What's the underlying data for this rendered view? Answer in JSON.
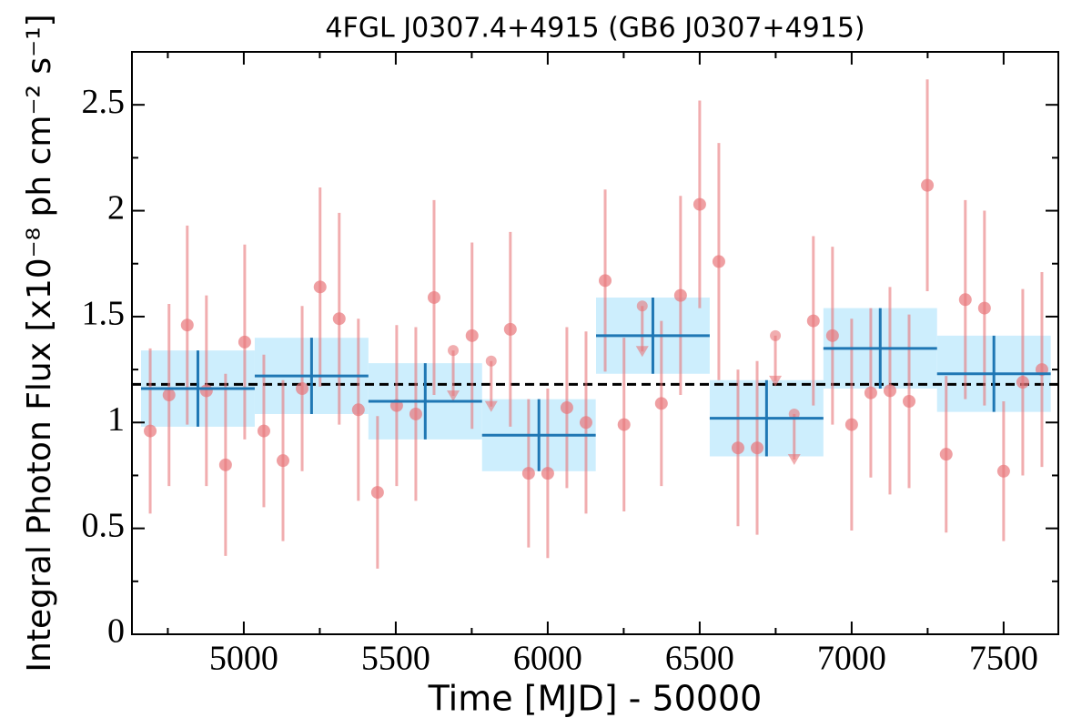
{
  "chart_data": {
    "type": "lightcurve",
    "title": "4FGL J0307.4+4915 (GB6 J0307+4915)",
    "x_label": "Time [MJD] - 50000",
    "y_label": "Integral Photon Flux [x10⁻⁸ ph cm⁻² s⁻¹]",
    "xlim": [
      4632,
      7680
    ],
    "ylim": [
      0,
      2.75
    ],
    "xticks": [
      5000,
      5500,
      6000,
      6500,
      7000,
      7500
    ],
    "minor_xticks": [
      4750,
      5250,
      5750,
      6250,
      6750,
      7250
    ],
    "yticks": [
      0,
      0.5,
      1,
      1.5,
      2,
      2.5
    ],
    "minor_yticks": [
      0.25,
      0.75,
      1.25,
      1.75,
      2.25
    ],
    "mean": 1.18,
    "mean_color": "#000000",
    "points": {
      "color": "#e8767a",
      "x": [
        4692,
        4754,
        4814,
        4877,
        4940,
        5003,
        5066,
        5129,
        5192,
        5251,
        5314,
        5377,
        5440,
        5503,
        5566,
        5626,
        5751,
        5877,
        5937,
        6000,
        6063,
        6126,
        6189,
        6251,
        6374,
        6437,
        6500,
        6563,
        6626,
        6689,
        6874,
        6937,
        7000,
        7063,
        7126,
        7189,
        7249,
        7311,
        7374,
        7437,
        7500,
        7563,
        7626
      ],
      "values": [
        0.96,
        1.13,
        1.46,
        1.15,
        0.8,
        1.38,
        0.96,
        0.82,
        1.16,
        1.64,
        1.49,
        1.06,
        0.67,
        1.08,
        1.04,
        1.59,
        1.41,
        1.44,
        0.76,
        0.76,
        1.07,
        1.0,
        1.67,
        0.99,
        1.09,
        1.6,
        2.03,
        1.76,
        0.88,
        0.88,
        1.48,
        1.41,
        0.99,
        1.14,
        1.15,
        1.1,
        2.12,
        0.85,
        1.58,
        1.54,
        0.77,
        1.19,
        1.25
      ],
      "errors": [
        0.39,
        0.43,
        0.47,
        0.45,
        0.43,
        0.46,
        0.36,
        0.38,
        0.39,
        0.47,
        0.5,
        0.43,
        0.36,
        0.38,
        0.41,
        0.46,
        0.44,
        0.46,
        0.35,
        0.4,
        0.38,
        0.43,
        0.43,
        0.41,
        0.39,
        0.47,
        0.49,
        0.56,
        0.37,
        0.41,
        0.4,
        0.42,
        0.5,
        0.4,
        0.49,
        0.41,
        0.5,
        0.37,
        0.47,
        0.46,
        0.33,
        0.44,
        0.46
      ]
    },
    "upper_limits": {
      "color": "#e8767a",
      "x": [
        5689,
        5814,
        6311,
        6749,
        6811
      ],
      "values": [
        1.34,
        1.29,
        1.55,
        1.41,
        1.04
      ]
    },
    "bins": {
      "color": "#1f77b4",
      "fill": "#cdeefd",
      "x": [
        4849,
        5223,
        5597,
        5971,
        6346,
        6720,
        7094,
        7468
      ],
      "xerr": [
        187,
        187,
        187,
        187,
        187,
        187,
        187,
        187
      ],
      "values": [
        1.16,
        1.22,
        1.1,
        0.94,
        1.41,
        1.02,
        1.35,
        1.23
      ],
      "errors": [
        0.18,
        0.18,
        0.18,
        0.17,
        0.18,
        0.18,
        0.19,
        0.18
      ]
    }
  }
}
